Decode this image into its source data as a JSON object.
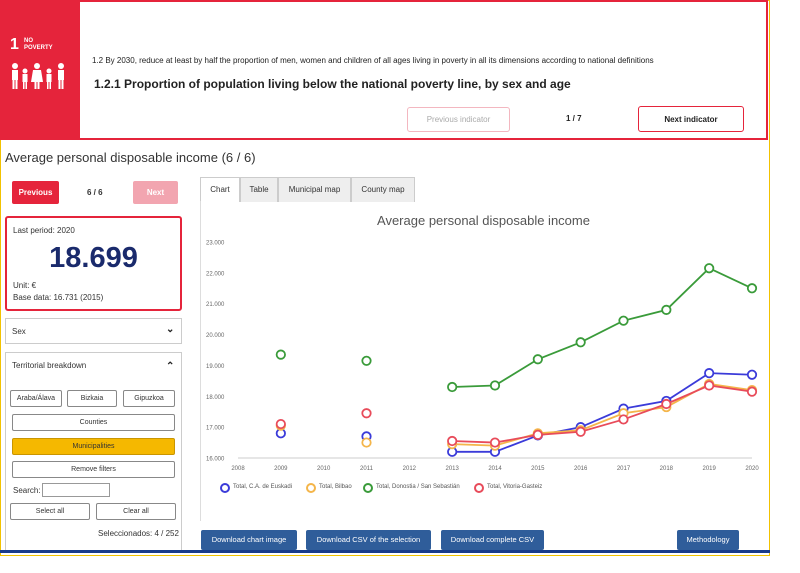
{
  "header": {
    "sdg_number": "1",
    "sdg_label_line1": "NO",
    "sdg_label_line2": "POVERTY",
    "target_text": "1.2 By 2030, reduce at least by half the proportion of men, women and children of all ages living in poverty in all its dimensions according to national definitions",
    "indicator_title": "1.2.1 Proportion of population living below the national poverty line, by sex and age",
    "prev_indicator_label": "Previous indicator",
    "indicator_pager": "1 / 7",
    "next_indicator_label": "Next indicator"
  },
  "page": {
    "title": "Average personal disposable income (6 / 6)",
    "prev_label": "Previous",
    "pager": "6 / 6",
    "next_label": "Next"
  },
  "kpi": {
    "period": "Last period: 2020",
    "value": "18.699",
    "unit": "Unit: €",
    "base": "Base data: 16.731 (2015)"
  },
  "filters": {
    "sex_label": "Sex",
    "territorial_label": "Territorial breakdown",
    "provinces": [
      "Araba/Álava",
      "Bizkaia",
      "Gipuzkoa"
    ],
    "counties_label": "Counties",
    "municipalities_label": "Municipalities",
    "remove_label": "Remove filters",
    "search_label": "Search:",
    "select_all_label": "Select all",
    "clear_all_label": "Clear all",
    "selected_text": "Seleccionados: 4 / 252"
  },
  "tabs": [
    "Chart",
    "Table",
    "Municipal map",
    "County map"
  ],
  "downloads": {
    "chart_image": "Download chart image",
    "csv_selection": "Download CSV of the selection",
    "csv_complete": "Download complete CSV",
    "methodology": "Methodology"
  },
  "colors": {
    "brand_red": "#e5243b",
    "accent_yellow": "#f5b800",
    "button_blue": "#2f5d9a",
    "kpi_blue": "#1a2a6c"
  },
  "chart_data": {
    "type": "line",
    "title": "Average personal disposable income",
    "x": [
      2008,
      2009,
      2010,
      2011,
      2012,
      2013,
      2014,
      2015,
      2016,
      2017,
      2018,
      2019,
      2020
    ],
    "x_ticks": [
      "2008",
      "2009",
      "2010",
      "2011",
      "2012",
      "2013",
      "2014",
      "2015",
      "2016",
      "2017",
      "2018",
      "2019",
      "2020"
    ],
    "y_ticks": [
      "16.000",
      "17.000",
      "18.000",
      "19.000",
      "20.000",
      "21.000",
      "22.000",
      "23.000"
    ],
    "ylim": [
      16000,
      23000
    ],
    "xlim": [
      2008,
      2020
    ],
    "legend_position": "bottom",
    "grid": false,
    "series": [
      {
        "name": "Total, C.A. de Euskadi",
        "color": "#3b3bd9",
        "values": [
          null,
          16800,
          null,
          16700,
          null,
          16200,
          16200,
          16731,
          17000,
          17600,
          17850,
          18750,
          18699
        ]
      },
      {
        "name": "Total, Bilbao",
        "color": "#f4b54a",
        "values": [
          null,
          17050,
          null,
          16500,
          null,
          16450,
          16400,
          16800,
          16900,
          17450,
          17650,
          18400,
          18200
        ]
      },
      {
        "name": "Total, Donostia / San Sebastián",
        "color": "#3a9b3a",
        "values": [
          null,
          19350,
          null,
          19150,
          null,
          18300,
          18350,
          19200,
          19750,
          20450,
          20800,
          22150,
          21500
        ]
      },
      {
        "name": "Total, Vitoria-Gasteiz",
        "color": "#e84b5a",
        "values": [
          null,
          17100,
          null,
          17450,
          null,
          16550,
          16500,
          16750,
          16850,
          17250,
          17750,
          18350,
          18150
        ]
      }
    ]
  }
}
